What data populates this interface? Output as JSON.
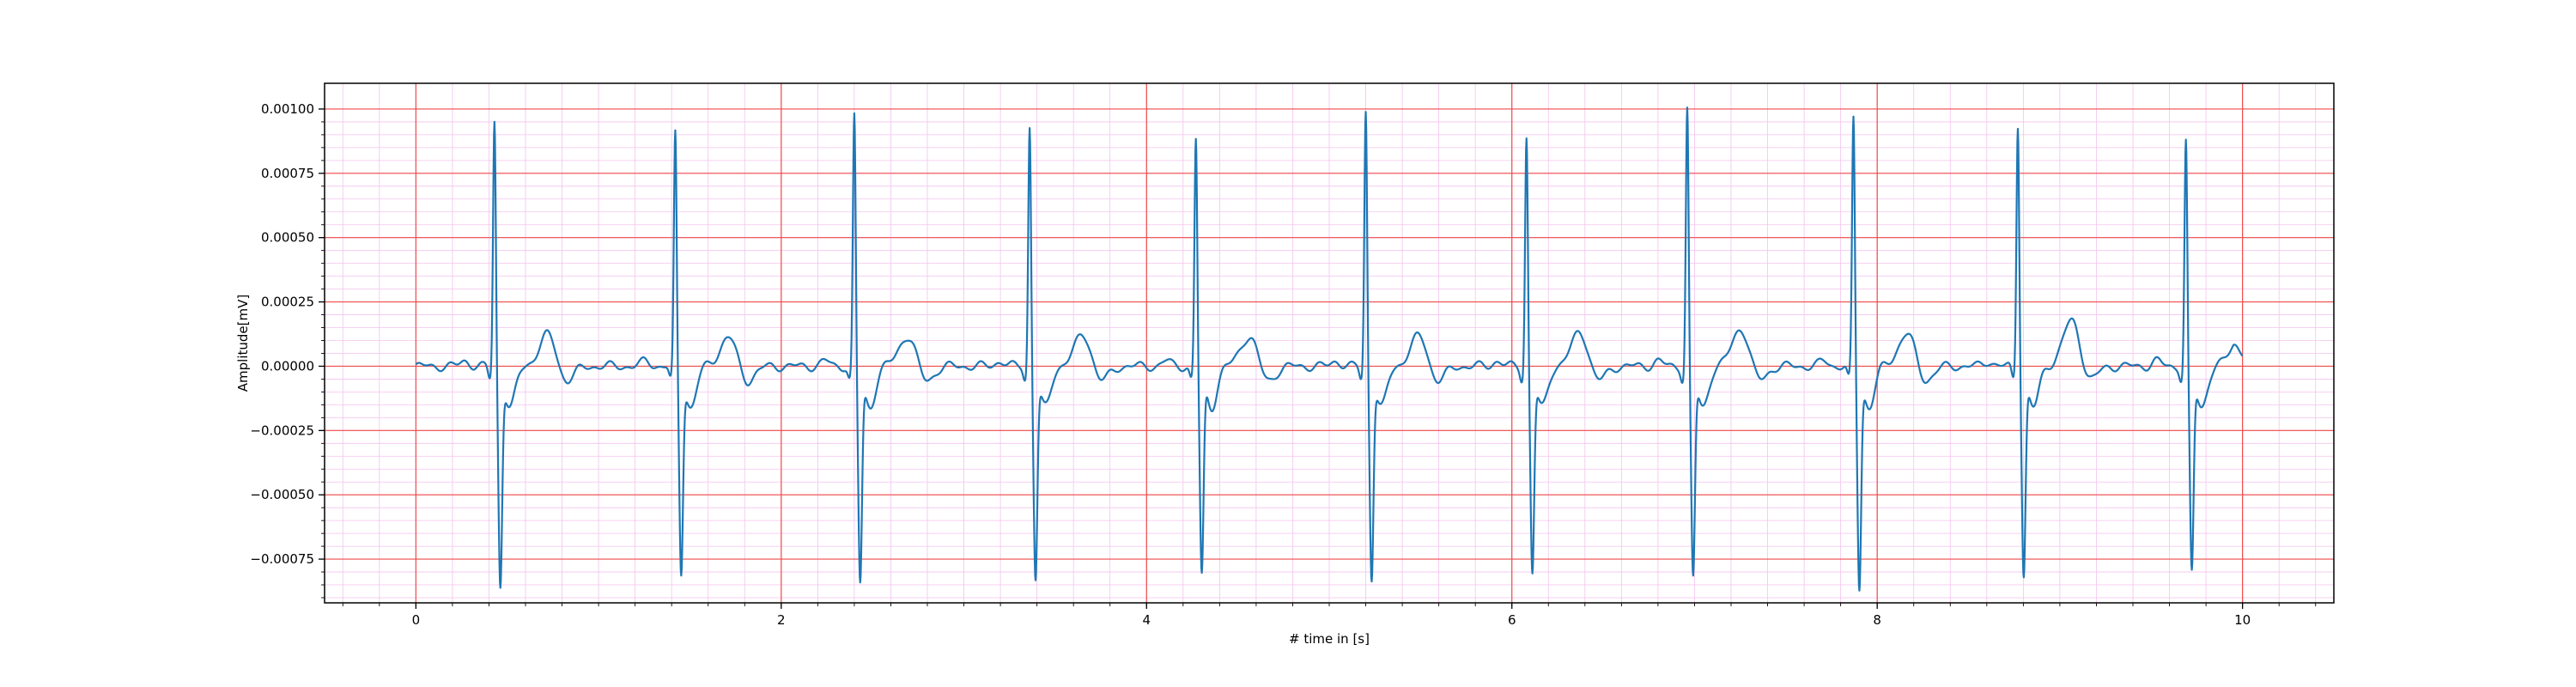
{
  "chart_data": {
    "type": "line",
    "title": "",
    "xlabel": "# time in [s]",
    "ylabel": "Amplitude[mV]",
    "xlim": [
      -0.5,
      10.5
    ],
    "ylim": [
      -0.00092,
      0.0011
    ],
    "x_ticks": [
      0,
      2,
      4,
      6,
      8,
      10
    ],
    "x_tick_labels": [
      "0",
      "2",
      "4",
      "6",
      "8",
      "10"
    ],
    "y_ticks": [
      0.001,
      0.00075,
      0.0005,
      0.00025,
      0.0,
      -0.00025,
      -0.0005,
      -0.00075
    ],
    "y_tick_labels": [
      "0.00100",
      "0.00075",
      "0.00050",
      "0.00025",
      "0.00000",
      "−0.00025",
      "−0.00050",
      "−0.00075"
    ],
    "grid": true,
    "colors": {
      "line": "#1f77b4",
      "major_grid": "#ef4a4a",
      "minor_grid": "#f4c2ee"
    },
    "series": [
      {
        "beats": [
          {
            "t": 0.43,
            "r": 0.00096,
            "s": -0.00082,
            "tw": 0.000135
          },
          {
            "t": 1.42,
            "r": 0.00091,
            "s": -0.00077,
            "tw": 0.000125
          },
          {
            "t": 2.4,
            "r": 0.00098,
            "s": -0.00081,
            "tw": 0.00013
          },
          {
            "t": 3.36,
            "r": 0.00094,
            "s": -0.00079,
            "tw": 0.000135
          },
          {
            "t": 4.27,
            "r": 0.00089,
            "s": -0.00078,
            "tw": 0.00013
          },
          {
            "t": 5.2,
            "r": 0.001,
            "s": -0.00079,
            "tw": 0.00013
          },
          {
            "t": 6.08,
            "r": 0.0009,
            "s": -0.00077,
            "tw": 0.000145
          },
          {
            "t": 6.96,
            "r": 0.00101,
            "s": -0.00079,
            "tw": 0.00016
          },
          {
            "t": 7.87,
            "r": 0.00097,
            "s": -0.00083,
            "tw": 0.00014
          },
          {
            "t": 8.77,
            "r": 0.00095,
            "s": -0.00078,
            "tw": 0.00019
          },
          {
            "t": 9.69,
            "r": 0.00088,
            "s": -0.00077,
            "tw": 0.00012
          }
        ],
        "t_start": 0.0,
        "t_end": 10.0,
        "end_value": 4e-05
      }
    ]
  }
}
